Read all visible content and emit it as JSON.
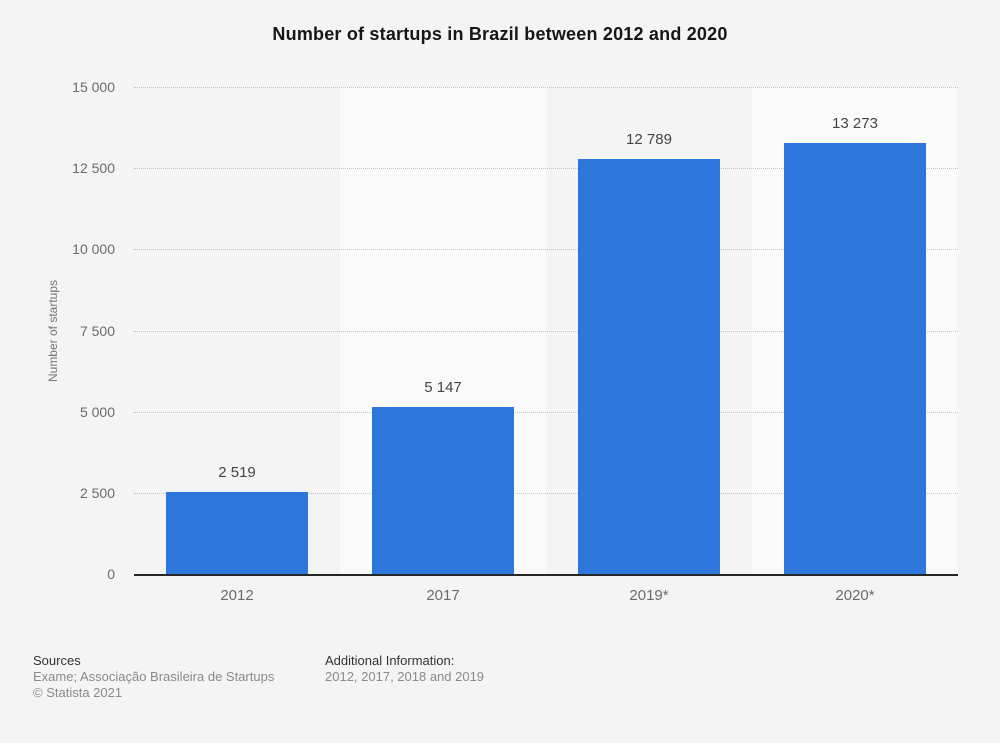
{
  "title": "Number of startups in Brazil between 2012 and 2020",
  "chart_data": {
    "type": "bar",
    "categories": [
      "2012",
      "2017",
      "2019*",
      "2020*"
    ],
    "values": [
      2519,
      5147,
      12789,
      13273
    ],
    "value_labels": [
      "2 519",
      "5 147",
      "12 789",
      "13 273"
    ],
    "title": "Number of startups in Brazil between 2012 and 2020",
    "xlabel": "",
    "ylabel": "Number of startups",
    "ylim": [
      0,
      15000
    ],
    "ytick_interval": 2500,
    "ytick_labels": [
      "0",
      "2 500",
      "5 000",
      "7 500",
      "10 000",
      "12 500",
      "15 000"
    ],
    "grid": "horizontal dotted",
    "legend": "none",
    "bar_color": "#2d76dc",
    "alternating_column_bands": true
  },
  "footer": {
    "sources_heading": "Sources",
    "sources_line": "Exame; Associação Brasileira de Startups",
    "copyright": "© Statista 2021",
    "additional_heading": "Additional Information:",
    "additional_line": "2012, 2017, 2018 and 2019"
  },
  "colors": {
    "page_background": "#f4f4f4",
    "band_light": "#fafafa",
    "bar": "#2d76dc",
    "axis_line": "#262626",
    "gridline": "#c4c4c4",
    "tick_text": "#6b6b6b",
    "value_label_text": "#454545",
    "title_text": "#161616",
    "footer_heading_text": "#333333",
    "footer_body_text": "#8a8a8a"
  }
}
